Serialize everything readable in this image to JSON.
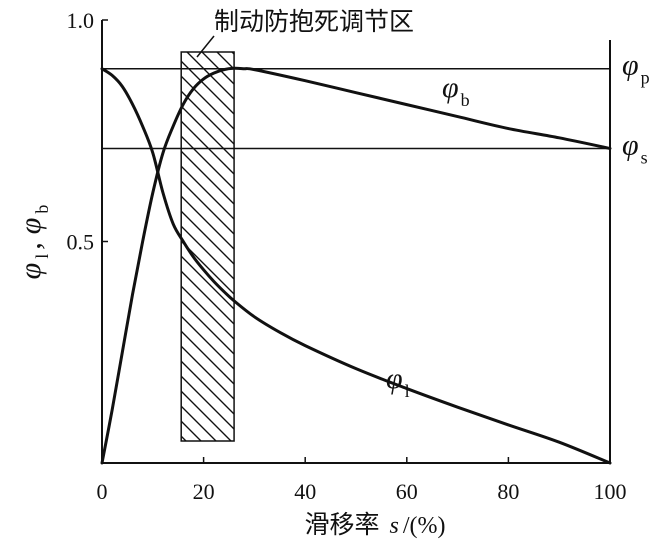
{
  "chart_data": {
    "type": "line",
    "x_ticks": [
      "0",
      "20",
      "40",
      "60",
      "80",
      "100"
    ],
    "y_ticks": [
      "0.5",
      "1.0"
    ],
    "xlim": [
      0,
      100
    ],
    "ylim": [
      0,
      1.0
    ],
    "xlabel": "滑移率",
    "xlabel_var": "s",
    "xlabel_unit": "/(%)",
    "ylabel": {
      "main1": "φ",
      "sub1": "l",
      "comma": ",",
      "main2": "φ",
      "sub2": "b"
    },
    "annotation": "制动防抱死调节区",
    "region": {
      "x_start": 15,
      "x_end": 26
    },
    "reference_lines": [
      {
        "symbol": "φ",
        "subscript": "p",
        "y": 0.89
      },
      {
        "symbol": "φ",
        "subscript": "s",
        "y": 0.71
      }
    ],
    "series": [
      {
        "name": "φ",
        "subscript": "b",
        "x": [
          0,
          2,
          4,
          6,
          8,
          10,
          12,
          14,
          16,
          18,
          20,
          22,
          24,
          26,
          28,
          30,
          40,
          50,
          60,
          70,
          80,
          90,
          100
        ],
        "y": [
          0.0,
          0.12,
          0.25,
          0.38,
          0.5,
          0.61,
          0.7,
          0.76,
          0.81,
          0.845,
          0.867,
          0.88,
          0.888,
          0.891,
          0.89,
          0.888,
          0.863,
          0.836,
          0.809,
          0.782,
          0.755,
          0.734,
          0.71
        ]
      },
      {
        "name": "φ",
        "subscript": "l",
        "x": [
          0,
          2,
          4,
          6,
          8,
          10,
          12,
          14,
          16,
          18,
          20,
          22,
          24,
          26,
          30,
          35,
          40,
          50,
          60,
          70,
          80,
          90,
          100
        ],
        "y": [
          0.89,
          0.875,
          0.85,
          0.81,
          0.76,
          0.7,
          0.61,
          0.54,
          0.5,
          0.465,
          0.436,
          0.41,
          0.387,
          0.366,
          0.33,
          0.295,
          0.265,
          0.213,
          0.168,
          0.126,
          0.086,
          0.047,
          0.0
        ]
      }
    ]
  }
}
